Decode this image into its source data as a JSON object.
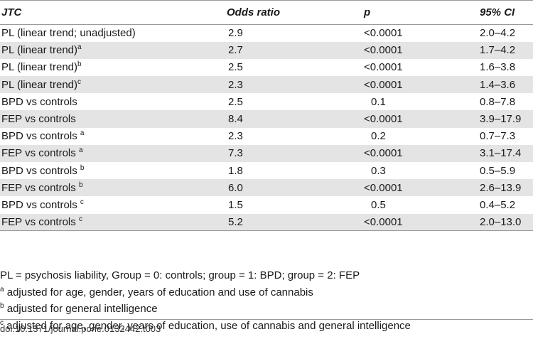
{
  "table": {
    "headers": [
      "JTC",
      "Odds ratio",
      "p",
      "95% CI"
    ],
    "rows": [
      {
        "label": "PL (linear trend; unadjusted)",
        "sup": "",
        "odds_ratio": "2.9",
        "p": "<0.0001",
        "ci": "2.0–4.2"
      },
      {
        "label": "PL (linear trend)",
        "sup": "a",
        "odds_ratio": "2.7",
        "p": "<0.0001",
        "ci": "1.7–4.2"
      },
      {
        "label": "PL (linear trend)",
        "sup": "b",
        "odds_ratio": "2.5",
        "p": "<0.0001",
        "ci": "1.6–3.8"
      },
      {
        "label": "PL (linear trend)",
        "sup": "c",
        "odds_ratio": "2.3",
        "p": "<0.0001",
        "ci": "1.4–3.6"
      },
      {
        "label": "BPD vs controls",
        "sup": "",
        "odds_ratio": "2.5",
        "p": "0.1",
        "ci": "0.8–7.8"
      },
      {
        "label": "FEP vs controls",
        "sup": "",
        "odds_ratio": "8.4",
        "p": "<0.0001",
        "ci": "3.9–17.9"
      },
      {
        "label": "BPD vs controls ",
        "sup": "a",
        "odds_ratio": "2.3",
        "p": "0.2",
        "ci": "0.7–7.3"
      },
      {
        "label": "FEP vs controls ",
        "sup": "a",
        "odds_ratio": "7.3",
        "p": "<0.0001",
        "ci": "3.1–17.4"
      },
      {
        "label": "BPD vs controls ",
        "sup": "b",
        "odds_ratio": "1.8",
        "p": "0.3",
        "ci": "0.5–5.9"
      },
      {
        "label": "FEP vs controls ",
        "sup": "b",
        "odds_ratio": "6.0",
        "p": "<0.0001",
        "ci": "2.6–13.9"
      },
      {
        "label": "BPD vs controls ",
        "sup": "c",
        "odds_ratio": "1.5",
        "p": "0.5",
        "ci": "0.4–5.2"
      },
      {
        "label": "FEP vs controls ",
        "sup": "c",
        "odds_ratio": "5.2",
        "p": "<0.0001",
        "ci": "2.0–13.0"
      }
    ]
  },
  "notes": {
    "legend": "PL = psychosis liability, Group = 0: controls; group = 1: BPD; group = 2: FEP",
    "footnotes": [
      {
        "mark": "a",
        "text": " adjusted for age, gender, years of education and use of cannabis"
      },
      {
        "mark": "b",
        "text": " adjusted for general intelligence"
      },
      {
        "mark": "c",
        "text": " adjusted for age, gender, years of education, use of cannabis and general intelligence"
      }
    ]
  },
  "doi": "doi:10.1371/journal.pone.0132442.t003"
}
